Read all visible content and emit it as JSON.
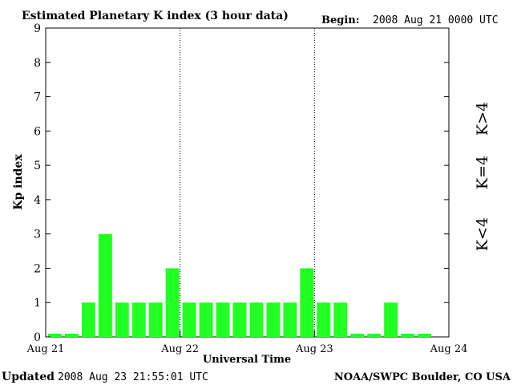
{
  "header": {
    "title": "Estimated Planetary K index (3 hour data)",
    "begin_label": "Begin:",
    "begin_value": "2008 Aug 21 0000 UTC"
  },
  "footer": {
    "updated_label": "Updated",
    "updated_value": "2008 Aug 23 21:55:01 UTC",
    "source": "NOAA/SWPC Boulder, CO USA"
  },
  "legend": {
    "k_less": {
      "text": "K<4",
      "color": "#22ee22"
    },
    "k_equal": {
      "text": "K=4",
      "color": "#ffd400"
    },
    "k_greater": {
      "text": "K>4",
      "color": "#ee2222"
    }
  },
  "chart_data": {
    "type": "bar",
    "xlabel": "Universal Time",
    "ylabel": "Kp index",
    "ylim": [
      0,
      9
    ],
    "yticks": [
      "0",
      "1",
      "2",
      "3",
      "4",
      "5",
      "6",
      "7",
      "8",
      "9"
    ],
    "xticks": [
      "Aug 21",
      "Aug 22",
      "Aug 23",
      "Aug 24"
    ],
    "interval_hours": 3,
    "values": [
      0,
      0,
      1,
      3,
      1,
      1,
      1,
      2,
      1,
      1,
      1,
      1,
      1,
      1,
      1,
      2,
      1,
      1,
      0,
      0,
      1,
      0,
      0
    ],
    "bar_color": "#22ff22",
    "grid": "dotted vertical lines at day boundaries"
  }
}
